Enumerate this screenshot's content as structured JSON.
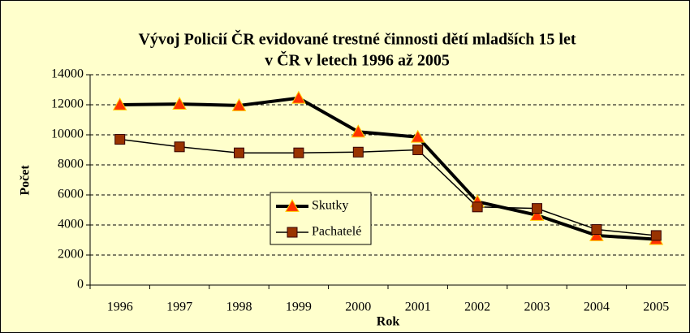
{
  "chart_data": {
    "type": "line",
    "title": [
      "Vývoj Policií ČR evidované trestné činnosti dětí mladších 15 let",
      "v ČR v letech 1996 až 2005"
    ],
    "xlabel": "Rok",
    "ylabel": "Počet",
    "categories": [
      "1996",
      "1997",
      "1998",
      "1999",
      "2000",
      "2001",
      "2002",
      "2003",
      "2004",
      "2005"
    ],
    "series": [
      {
        "name": "Skutky",
        "color": "#000000",
        "marker_color": "#ff3300",
        "values": [
          12000,
          12050,
          11950,
          12450,
          10200,
          9850,
          5550,
          4650,
          3300,
          3050
        ]
      },
      {
        "name": "Pachatelé",
        "color": "#000000",
        "marker_color": "#993300",
        "values": [
          9700,
          9200,
          8800,
          8800,
          8850,
          9000,
          5200,
          5100,
          3700,
          3300
        ]
      }
    ],
    "ylim": [
      0,
      14000
    ],
    "yticks": [
      0,
      2000,
      4000,
      6000,
      8000,
      10000,
      12000,
      14000
    ],
    "grid": true
  }
}
